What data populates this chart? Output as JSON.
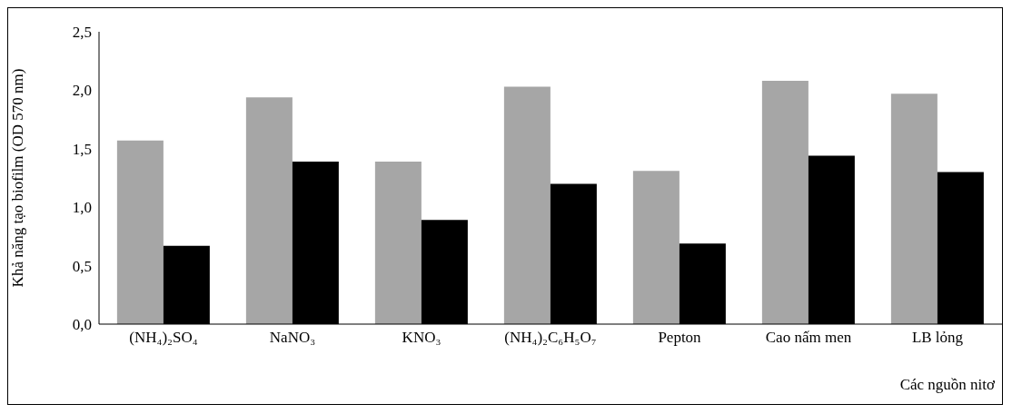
{
  "chart_data": {
    "type": "bar",
    "xlabel": "Các nguồn nitơ",
    "ylabel": "Khả năng tạo biofilm (OD 570 nm)",
    "categories": [
      "(NH₄)₂SO₄",
      "NaNO₃",
      "KNO₃",
      "(NH₄)₂C₆H₅O₇",
      "Pepton",
      "Cao nấm men",
      "LB lỏng"
    ],
    "series": [
      {
        "color": "#a6a6a6",
        "values": [
          1.57,
          1.94,
          1.39,
          2.03,
          1.31,
          2.08,
          1.97
        ]
      },
      {
        "color": "#000000",
        "values": [
          0.67,
          1.39,
          0.89,
          1.2,
          0.69,
          1.44,
          1.3
        ]
      }
    ],
    "ylim": [
      0,
      2.5
    ],
    "yticks": [
      {
        "value": 0,
        "label": "0,0"
      },
      {
        "value": 0.5,
        "label": "0,5"
      },
      {
        "value": 1,
        "label": "1,0"
      },
      {
        "value": 1.5,
        "label": "1,5"
      },
      {
        "value": 2,
        "label": "2,0"
      },
      {
        "value": 2.5,
        "label": "2,5"
      }
    ],
    "grid": false,
    "legend": false
  }
}
